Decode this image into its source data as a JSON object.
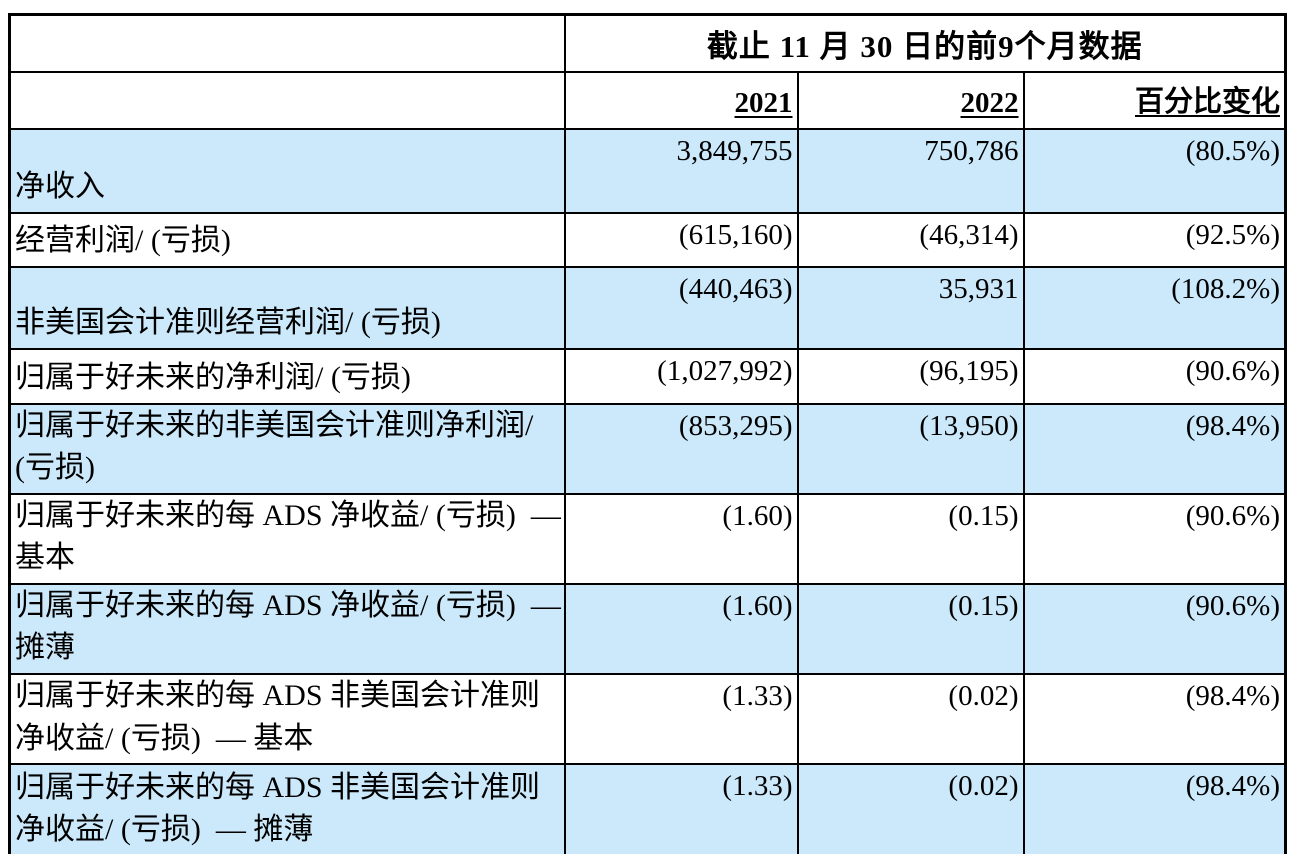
{
  "header": {
    "period_title": "截止 11 月 30 日的前9个月数据",
    "columns": [
      "2021",
      "2022",
      "百分比变化"
    ]
  },
  "table": {
    "rows": [
      {
        "label": "净收入",
        "y2021": "3,849,755",
        "y2022": "750,786",
        "pct": "(80.5%)"
      },
      {
        "label": "经营利润/ (亏损)",
        "y2021": "(615,160)",
        "y2022": "(46,314)",
        "pct": "(92.5%)"
      },
      {
        "label": "非美国会计准则经营利润/ (亏损)",
        "y2021": "(440,463)",
        "y2022": "35,931",
        "pct": "(108.2%)"
      },
      {
        "label": "归属于好未来的净利润/ (亏损)",
        "y2021": "(1,027,992)",
        "y2022": "(96,195)",
        "pct": "(90.6%)"
      },
      {
        "label": "归属于好未来的非美国会计准则净利润/ (亏损)",
        "y2021": "(853,295)",
        "y2022": "(13,950)",
        "pct": "(98.4%)"
      },
      {
        "label": "归属于好未来的每 ADS 净收益/ (亏损)  — 基本",
        "y2021": "(1.60)",
        "y2022": "(0.15)",
        "pct": "(90.6%)"
      },
      {
        "label": "归属于好未来的每 ADS 净收益/ (亏损)  — 摊薄",
        "y2021": "(1.60)",
        "y2022": "(0.15)",
        "pct": "(90.6%)"
      },
      {
        "label": "归属于好未来的每 ADS 非美国会计准则净收益/ (亏损)  — 基本",
        "y2021": "(1.33)",
        "y2022": "(0.02)",
        "pct": "(98.4%)"
      },
      {
        "label": "归属于好未来的每 ADS 非美国会计准则净收益/ (亏损)  — 摊薄",
        "y2021": "(1.33)",
        "y2022": "(0.02)",
        "pct": "(98.4%)"
      }
    ]
  },
  "colors": {
    "row_highlight": "#CBE9FA",
    "border": "#000000",
    "background": "#FFFFFF"
  }
}
